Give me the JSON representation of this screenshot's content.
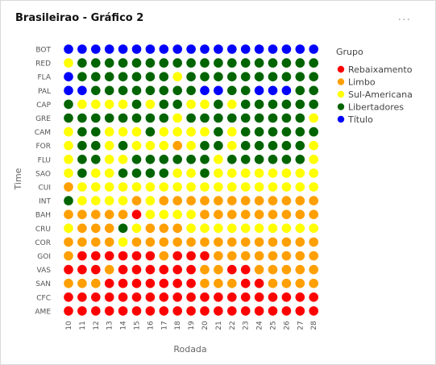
{
  "card": {
    "title": "Brasileirao - Gráfico 2",
    "menu_icon": "more-icon",
    "menu_label": "..."
  },
  "chart_data": {
    "type": "heatmap",
    "xlabel": "Rodada",
    "ylabel": "Time",
    "x": [
      "10",
      "11",
      "12",
      "13",
      "14",
      "15",
      "16",
      "17",
      "18",
      "19",
      "20",
      "21",
      "22",
      "23",
      "24",
      "25",
      "26",
      "27",
      "28"
    ],
    "y": [
      "BOT",
      "RED",
      "FLA",
      "PAL",
      "CAP",
      "GRE",
      "CAM",
      "FOR",
      "FLU",
      "SAO",
      "CUI",
      "INT",
      "BAH",
      "CRU",
      "COR",
      "GOI",
      "VAS",
      "SAN",
      "CFC",
      "AME"
    ],
    "legend": {
      "title": "Grupo",
      "placement": "right",
      "entries": [
        {
          "key": "R",
          "label": "Rebaixamento",
          "color": "#ff0000"
        },
        {
          "key": "O",
          "label": "Limbo",
          "color": "#ff9f00"
        },
        {
          "key": "Y",
          "label": "Sul-Americana",
          "color": "#ffff00"
        },
        {
          "key": "G",
          "label": "Libertadores",
          "color": "#006400"
        },
        {
          "key": "B",
          "label": "Título",
          "color": "#0000ff"
        }
      ]
    },
    "rows": [
      "BBBBBBBBBBBBBBBBBBB",
      "YGGGGGGGGGGGGGGGGGG",
      "BGGGGGGGYGGGGGGGGGG",
      "BBGGGGGGGGBBGGBBBGG",
      "GYYYYGYGGYYGYGGGGGG",
      "GGGGGGGGYGGGGGGGGGY",
      "YGGYYYGYYYYGYGGGGGG",
      "YGGYGYYYOYGGYGGGGGY",
      "YGGYYGGGGGGYGGGGGGY",
      "YGYYGGGGYYGYYYYYYYY",
      "OYYYYYYYYYYYYYYYYYY",
      "GYYYYOYOOOOOOOOOOOO",
      "OOOOORYYYYOOOOOOOOO",
      "YOOOGYOOOYYYYYYYYYY",
      "OOOOYOOOOOOOOOOOOOO",
      "ORRRRRRORRROOOOOOOO",
      "RRRORRRRRROORROOOOO",
      "OOORRRRRRROOORROOOO",
      "RRRRRRRRRRRRRRRRRRR",
      "RRRRRRRRRRRRRRRRRRR"
    ]
  }
}
